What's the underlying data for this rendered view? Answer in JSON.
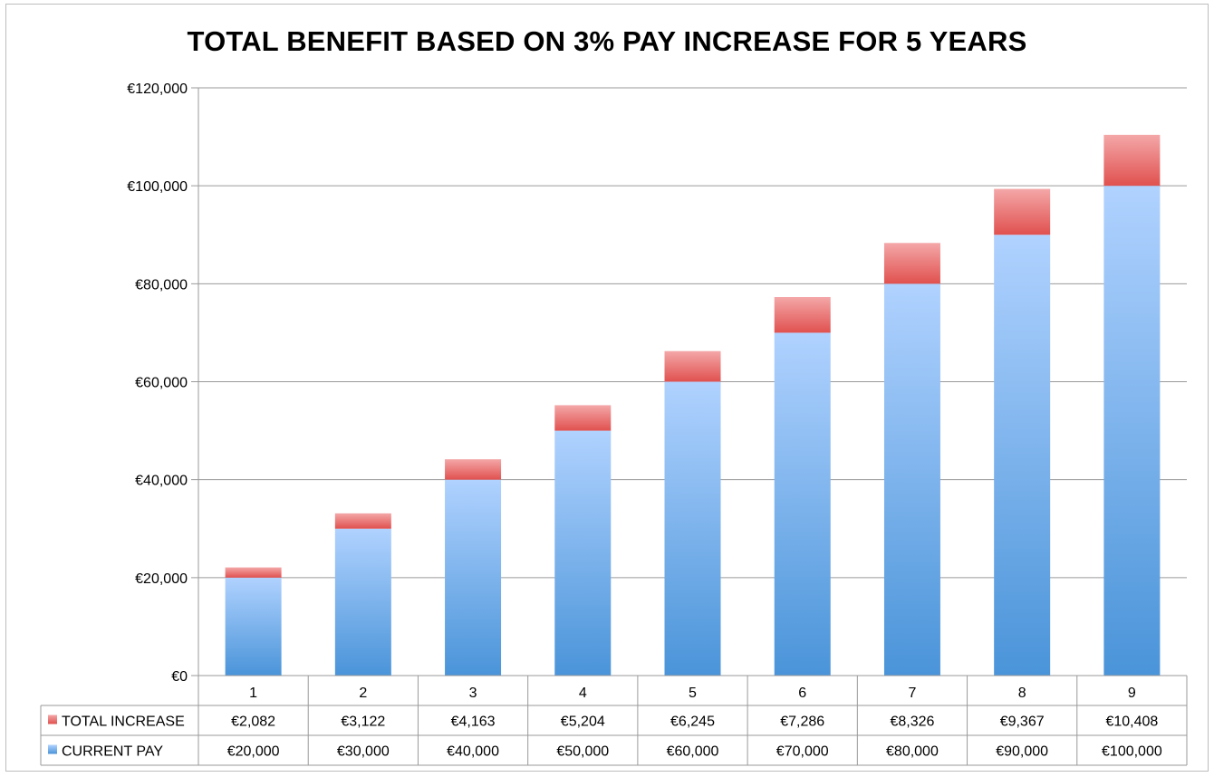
{
  "chart_data": {
    "type": "bar",
    "stacked": true,
    "title": "TOTAL BENEFIT BASED ON 3% PAY INCREASE FOR 5 YEARS",
    "xlabel": "",
    "ylabel": "",
    "categories": [
      "1",
      "2",
      "3",
      "4",
      "5",
      "6",
      "7",
      "8",
      "9"
    ],
    "series": [
      {
        "name": "CURRENT PAY",
        "values": [
          20000,
          30000,
          40000,
          50000,
          60000,
          70000,
          80000,
          90000,
          100000
        ],
        "labels": [
          "€20,000",
          "€30,000",
          "€40,000",
          "€50,000",
          "€60,000",
          "€70,000",
          "€80,000",
          "€90,000",
          "€100,000"
        ],
        "color": "#6aa3e4"
      },
      {
        "name": "TOTAL INCREASE",
        "values": [
          2082,
          3122,
          4163,
          5204,
          6245,
          7286,
          8326,
          9367,
          10408
        ],
        "labels": [
          "€2,082",
          "€3,122",
          "€4,163",
          "€5,204",
          "€6,245",
          "€7,286",
          "€8,326",
          "€9,367",
          "€10,408"
        ],
        "color": "#e8696b"
      }
    ],
    "ylim": [
      0,
      120000
    ],
    "yticks": [
      0,
      20000,
      40000,
      60000,
      80000,
      100000,
      120000
    ],
    "ytick_labels": [
      "€0",
      "€20,000",
      "€40,000",
      "€60,000",
      "€80,000",
      "€100,000",
      "€120,000"
    ],
    "grid": true,
    "legend": "data-table"
  }
}
